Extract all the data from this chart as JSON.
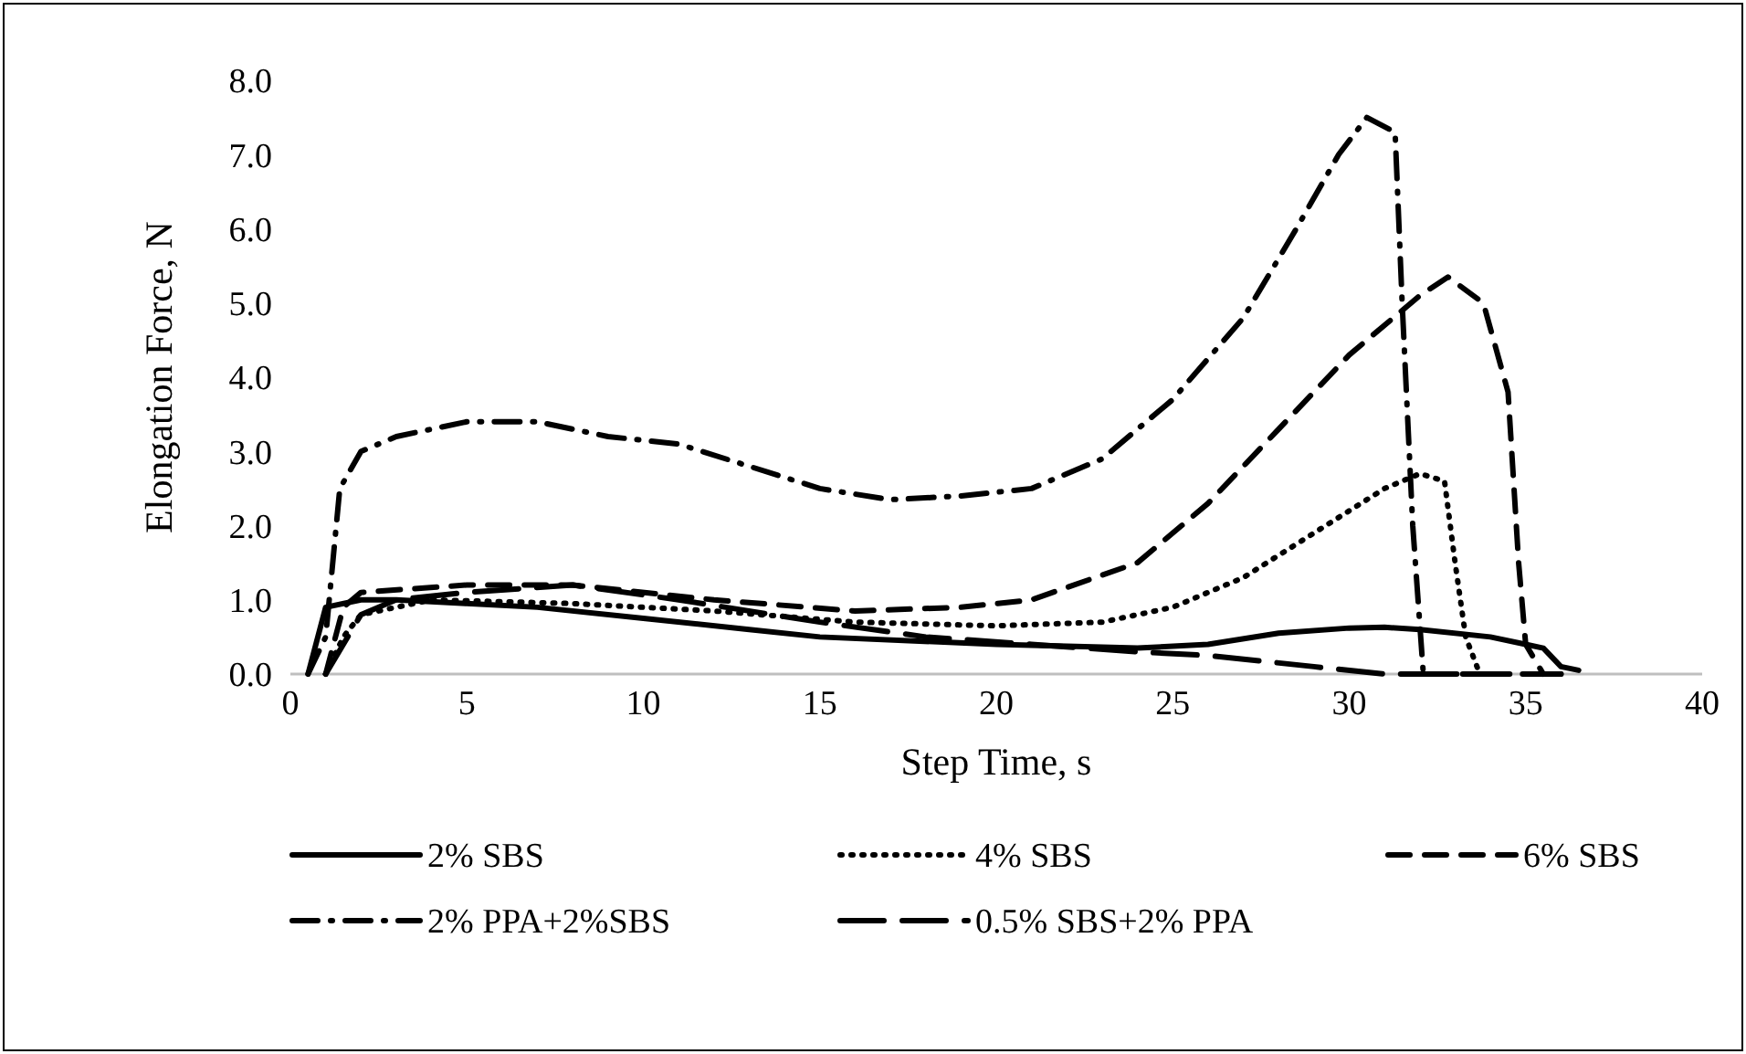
{
  "chart_data": {
    "type": "line",
    "xlabel": "Step Time, s",
    "ylabel": "Elongation Force, N",
    "xlim": [
      0,
      40
    ],
    "xticks": [
      0,
      5,
      10,
      15,
      20,
      25,
      30,
      35,
      40
    ],
    "ylim": [
      0,
      8
    ],
    "yticks": [
      {
        "value": 0,
        "label": "0.0"
      },
      {
        "value": 1,
        "label": "1.0"
      },
      {
        "value": 2,
        "label": "2.0"
      },
      {
        "value": 3,
        "label": "3.0"
      },
      {
        "value": 4,
        "label": "4.0"
      },
      {
        "value": 5,
        "label": "5.0"
      },
      {
        "value": 6,
        "label": "6.0"
      },
      {
        "value": 7,
        "label": "7.0"
      },
      {
        "value": 8,
        "label": "8.0"
      }
    ],
    "grid": false,
    "legend": "bottom",
    "series": [
      {
        "name": "2% SBS",
        "color": "#000000",
        "line_style": "solid",
        "x": [
          0.5,
          1,
          2,
          3,
          5,
          7,
          10,
          13,
          15,
          20,
          24,
          26,
          28,
          30,
          31,
          32,
          34,
          35,
          35.5,
          36,
          36.5
        ],
        "values": [
          0,
          0.9,
          1.0,
          1.0,
          0.95,
          0.9,
          0.75,
          0.6,
          0.5,
          0.4,
          0.35,
          0.4,
          0.55,
          0.62,
          0.63,
          0.6,
          0.5,
          0.4,
          0.35,
          0.1,
          0.05
        ]
      },
      {
        "name": "4% SBS",
        "color": "#000000",
        "line_style": "dotted",
        "x": [
          1,
          1.5,
          2,
          4,
          8,
          12,
          16,
          20,
          23,
          25,
          27,
          29,
          31,
          32,
          32.7,
          33,
          33.3,
          33.7
        ],
        "values": [
          0,
          0.5,
          0.8,
          1.0,
          0.95,
          0.85,
          0.7,
          0.65,
          0.7,
          0.9,
          1.3,
          1.9,
          2.5,
          2.7,
          2.6,
          1.5,
          0.5,
          0
        ]
      },
      {
        "name": "6% SBS",
        "color": "#000000",
        "line_style": "dashed",
        "x": [
          1,
          1.5,
          2,
          5,
          8,
          12,
          16,
          19,
          21,
          24,
          26,
          28,
          30,
          32,
          32.8,
          33.8,
          34.5,
          34.8,
          35,
          35.5
        ],
        "values": [
          0,
          0.9,
          1.1,
          1.2,
          1.2,
          1.0,
          0.85,
          0.9,
          1.0,
          1.5,
          2.3,
          3.3,
          4.3,
          5.1,
          5.35,
          5.0,
          3.8,
          1.5,
          0.4,
          0
        ]
      },
      {
        "name": "2% PPA+2%SBS",
        "color": "#000000",
        "line_style": "dashdot",
        "x": [
          0.5,
          1,
          1.4,
          2,
          3,
          5,
          7,
          9,
          11,
          13,
          15,
          17,
          19,
          21,
          23,
          25,
          27,
          28.5,
          29.7,
          30.5,
          31.3,
          31.5,
          31.8,
          32.1,
          36
        ],
        "values": [
          0,
          0.5,
          2.5,
          3.0,
          3.2,
          3.4,
          3.4,
          3.2,
          3.1,
          2.8,
          2.5,
          2.35,
          2.4,
          2.5,
          2.9,
          3.7,
          4.8,
          6.0,
          7.0,
          7.5,
          7.3,
          5.0,
          2.0,
          0,
          0
        ]
      },
      {
        "name": "0.5% SBS+2% PPA",
        "color": "#000000",
        "line_style": "longdash",
        "x": [
          1,
          1.5,
          2,
          3,
          5,
          8,
          11,
          15,
          18,
          21,
          24,
          26,
          29,
          31,
          36
        ],
        "values": [
          0,
          0.4,
          0.8,
          1.0,
          1.1,
          1.2,
          1.0,
          0.7,
          0.5,
          0.4,
          0.3,
          0.25,
          0.1,
          0,
          0
        ]
      }
    ]
  }
}
